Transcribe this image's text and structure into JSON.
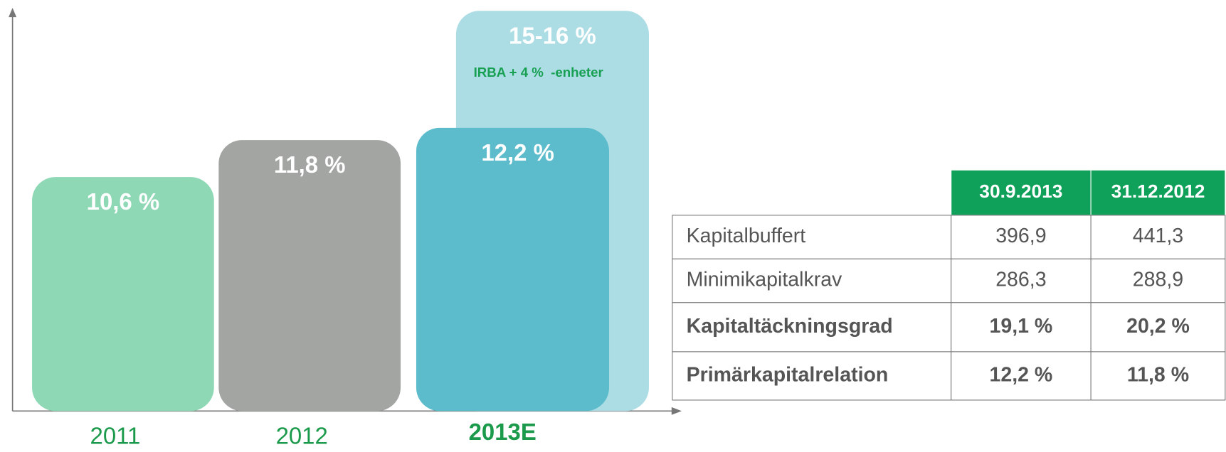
{
  "chart_data": {
    "type": "bar",
    "categories": [
      "2011",
      "2012",
      "2013E"
    ],
    "values": [
      10.6,
      11.8,
      12.2
    ],
    "value_labels": [
      "10,6 %",
      "11,8 %",
      "12,2 %"
    ],
    "colors": [
      "#8fd8b5",
      "#a3a5a2",
      "#5dbccb"
    ],
    "ylim": [
      3,
      16.2
    ],
    "range_bar": {
      "low": 15,
      "high": 16,
      "label": "15-16 %",
      "annotation": "IRBA + 4 %  -enheter",
      "color": "#acdde4"
    }
  },
  "table": {
    "header": [
      "30.9.2013",
      "31.12.2012"
    ],
    "rows": [
      [
        "Kapitalbuffert",
        "396,9",
        "441,3"
      ],
      [
        "Minimikapitalkrav",
        "286,3",
        "288,9"
      ],
      [
        "Kapitaltäckningsgrad",
        "19,1 %",
        "20,2 %"
      ],
      [
        "Primärkapitalrelation",
        "12,2 %",
        "11,8 %"
      ]
    ]
  }
}
